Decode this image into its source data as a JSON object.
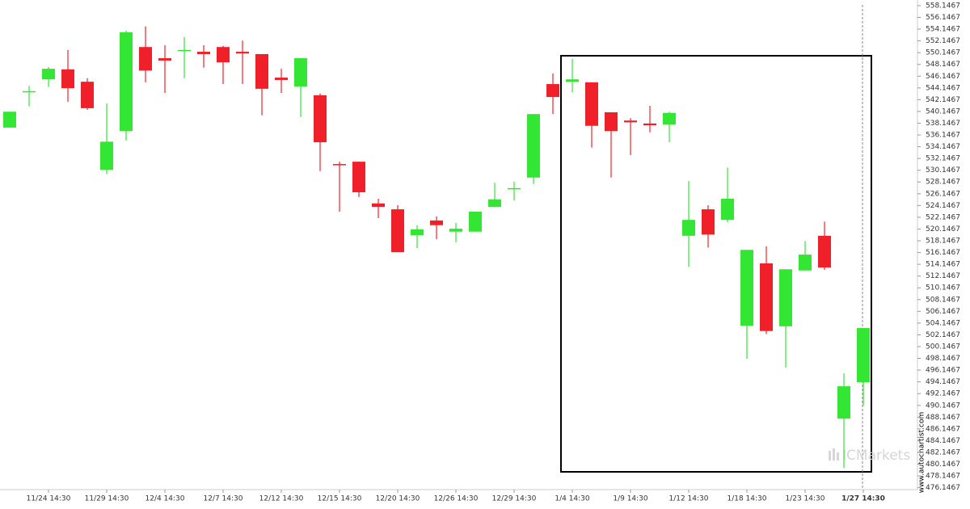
{
  "chart_data": {
    "type": "candlestick",
    "categories": [
      null,
      null,
      "11/24 14:30",
      null,
      null,
      "11/29 14:30",
      null,
      null,
      "12/4 14:30",
      null,
      null,
      "12/7 14:30",
      null,
      null,
      "12/12 14:30",
      null,
      null,
      "12/15 14:30",
      null,
      null,
      "12/20 14:30",
      null,
      null,
      "12/26 14:30",
      null,
      null,
      "12/29 14:30",
      null,
      null,
      "1/4 14:30",
      null,
      null,
      "1/9 14:30",
      null,
      null,
      "1/12 14:30",
      null,
      null,
      "1/18 14:30",
      null,
      null,
      "1/23 14:30",
      null,
      null,
      "1/27 14:30"
    ],
    "open": [
      537.4,
      543.5,
      545.6,
      547.3,
      545.2,
      530.2,
      536.8,
      551.1,
      549.2,
      550.5,
      550.3,
      551.1,
      550.3,
      549.9,
      545.9,
      544.4,
      542.9,
      531.2,
      531.6,
      524.5,
      523.5,
      519.1,
      521.6,
      519.7,
      519.7,
      523.9,
      527.0,
      528.9,
      544.8,
      545.2,
      545.1,
      540.0,
      538.6,
      538.1,
      537.9,
      519.0,
      523.5,
      521.7,
      503.7,
      514.3,
      503.6,
      513.1,
      519.0,
      487.9,
      494.1
    ],
    "high": [
      540.1,
      544.5,
      547.7,
      550.6,
      545.8,
      541.5,
      553.9,
      554.6,
      551.4,
      552.8,
      551.4,
      551.3,
      552.2,
      549.9,
      547.4,
      549.2,
      543.2,
      531.6,
      531.6,
      525.3,
      524.2,
      520.8,
      522.3,
      521.2,
      523.1,
      528.0,
      528.2,
      539.7,
      546.6,
      549.1,
      545.1,
      540.0,
      539.0,
      541.1,
      540.1,
      528.3,
      524.2,
      530.6,
      516.6,
      517.2,
      513.3,
      518.1,
      521.4,
      495.6,
      503.3
    ],
    "low": [
      537.4,
      541.0,
      544.3,
      541.8,
      540.4,
      529.5,
      535.2,
      545.1,
      543.3,
      545.8,
      547.6,
      544.8,
      544.8,
      539.5,
      543.3,
      539.2,
      530.0,
      523.1,
      525.6,
      522.0,
      516.2,
      516.9,
      518.4,
      517.9,
      519.7,
      523.9,
      525.0,
      527.8,
      539.7,
      543.4,
      534.0,
      528.9,
      532.7,
      536.6,
      534.9,
      513.7,
      517.0,
      521.3,
      498.1,
      502.3,
      496.6,
      513.1,
      513.2,
      479.5,
      490.1
    ],
    "close": [
      540.1,
      543.6,
      547.4,
      544.1,
      540.7,
      535.0,
      553.6,
      547.1,
      548.8,
      550.6,
      549.9,
      548.5,
      550.0,
      544.0,
      545.5,
      549.2,
      534.9,
      531.0,
      526.4,
      523.9,
      516.2,
      520.1,
      520.8,
      520.2,
      523.1,
      525.2,
      527.1,
      539.7,
      542.6,
      545.6,
      537.7,
      536.8,
      538.3,
      537.8,
      539.9,
      521.7,
      519.2,
      525.3,
      516.6,
      502.8,
      513.3,
      515.8,
      513.6,
      493.4,
      503.3
    ],
    "up_color": "#33e633",
    "down_color": "#f0202a",
    "ylim": [
      475,
      559.1
    ],
    "yticks": [
      558.1467,
      556.1467,
      554.1467,
      552.1467,
      550.1467,
      548.1467,
      546.1467,
      544.1467,
      542.1467,
      540.1467,
      538.1467,
      536.1467,
      534.1467,
      532.1467,
      530.1467,
      528.1467,
      526.1467,
      524.1467,
      522.1467,
      520.1467,
      518.1467,
      516.1467,
      514.1467,
      512.1467,
      510.1467,
      508.1467,
      506.1467,
      504.1467,
      502.1467,
      500.1467,
      498.1467,
      496.1467,
      494.1467,
      492.1467,
      490.1467,
      488.1467,
      486.1467,
      484.1467,
      482.1467,
      480.1467,
      478.1467,
      476.1467
    ],
    "watermark": "ICMarkets",
    "source": "www.autochartist.com"
  }
}
